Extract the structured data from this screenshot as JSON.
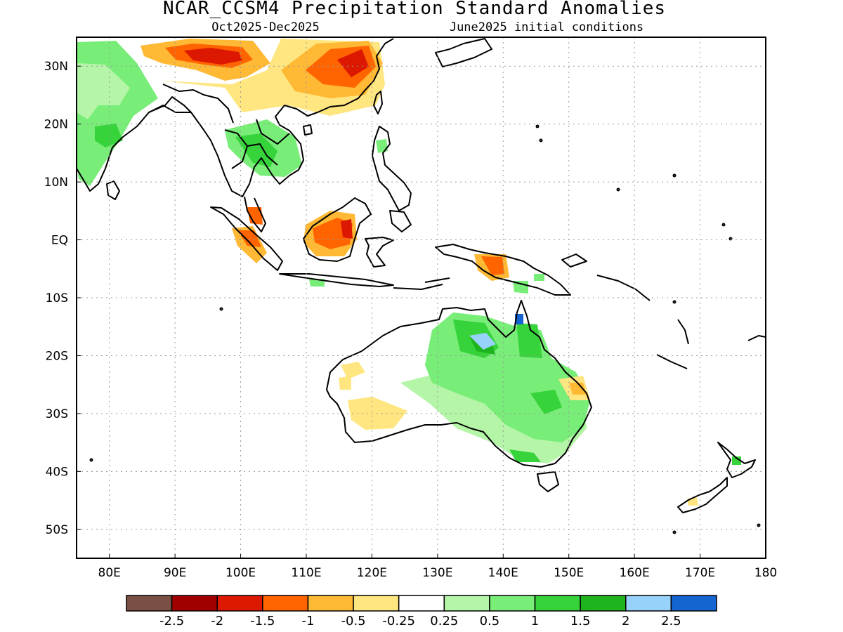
{
  "title": "NCAR_CCSM4 Precipitation Standard Anomalies",
  "subtitle_left": "Oct2025-Dec2025",
  "subtitle_right": "June2025 initial conditions",
  "map": {
    "lon_range": [
      75,
      180
    ],
    "lat_range": [
      -55,
      35
    ],
    "x_ticks": [
      {
        "value": 80,
        "label": "80E"
      },
      {
        "value": 90,
        "label": "90E"
      },
      {
        "value": 100,
        "label": "100E"
      },
      {
        "value": 110,
        "label": "110E"
      },
      {
        "value": 120,
        "label": "120E"
      },
      {
        "value": 130,
        "label": "130E"
      },
      {
        "value": 140,
        "label": "140E"
      },
      {
        "value": 150,
        "label": "150E"
      },
      {
        "value": 160,
        "label": "160E"
      },
      {
        "value": 170,
        "label": "170E"
      },
      {
        "value": 180,
        "label": "180"
      }
    ],
    "y_ticks": [
      {
        "value": 30,
        "label": "30N"
      },
      {
        "value": 20,
        "label": "20N"
      },
      {
        "value": 10,
        "label": "10N"
      },
      {
        "value": 0,
        "label": "EQ"
      },
      {
        "value": -10,
        "label": "10S"
      },
      {
        "value": -20,
        "label": "20S"
      },
      {
        "value": -30,
        "label": "30S"
      },
      {
        "value": -40,
        "label": "40S"
      },
      {
        "value": -50,
        "label": "50S"
      }
    ]
  },
  "colorbar": {
    "colors": [
      "#7b5044",
      "#a00000",
      "#dd1800",
      "#ff6400",
      "#ffb935",
      "#ffe680",
      "#ffffff",
      "#b4f5a7",
      "#78ed78",
      "#37d33b",
      "#1eb41e",
      "#96d2fa",
      "#1464d2"
    ],
    "labels": [
      "-2.5",
      "-2",
      "-1.5",
      "-1",
      "-0.5",
      "-0.25",
      "0.25",
      "0.5",
      "1",
      "1.5",
      "2",
      "2.5"
    ]
  }
}
